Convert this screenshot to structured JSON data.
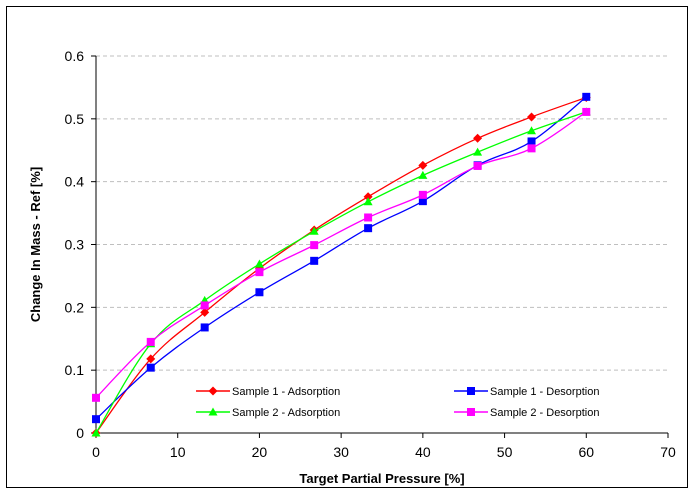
{
  "chart_data": {
    "type": "line",
    "title": "",
    "xlabel": "Target Partial Pressure [%]",
    "ylabel": "Change In Mass - Ref [%]",
    "xlim": [
      0,
      70
    ],
    "ylim": [
      0,
      0.6
    ],
    "xticks": [
      "0",
      "10",
      "20",
      "30",
      "40",
      "50",
      "60",
      "70"
    ],
    "yticks": [
      "0",
      "0.1",
      "0.2",
      "0.3",
      "0.4",
      "0.5",
      "0.6"
    ],
    "grid": "horizontal dashed",
    "legend_position": "bottom-inside",
    "series": [
      {
        "name": "Sample 1 - Adsorption",
        "color": "#ff0000",
        "marker": "diamond",
        "x": [
          0,
          6.7,
          13.3,
          20,
          26.7,
          33.3,
          40,
          46.7,
          53.3,
          60
        ],
        "y": [
          0.0,
          0.118,
          0.192,
          0.262,
          0.323,
          0.376,
          0.426,
          0.469,
          0.503,
          0.534
        ]
      },
      {
        "name": "Sample 1 - Desorption",
        "color": "#0000ff",
        "marker": "square",
        "x": [
          0,
          6.7,
          13.3,
          20,
          26.7,
          33.3,
          40,
          46.7,
          53.3,
          60
        ],
        "y": [
          0.022,
          0.104,
          0.168,
          0.224,
          0.274,
          0.326,
          0.369,
          0.426,
          0.464,
          0.535
        ]
      },
      {
        "name": "Sample 2 - Adsorption",
        "color": "#00ff00",
        "marker": "triangle",
        "x": [
          0,
          6.7,
          13.3,
          20,
          26.7,
          33.3,
          40,
          46.7,
          53.3,
          60
        ],
        "y": [
          0.0,
          0.142,
          0.211,
          0.269,
          0.321,
          0.368,
          0.41,
          0.447,
          0.481,
          0.511
        ]
      },
      {
        "name": "Sample 2 - Desorption",
        "color": "#ff00ff",
        "marker": "square",
        "x": [
          0,
          6.7,
          13.3,
          20,
          26.7,
          33.3,
          40,
          46.7,
          53.3,
          60
        ],
        "y": [
          0.056,
          0.145,
          0.203,
          0.256,
          0.299,
          0.343,
          0.379,
          0.425,
          0.453,
          0.511
        ]
      }
    ]
  }
}
